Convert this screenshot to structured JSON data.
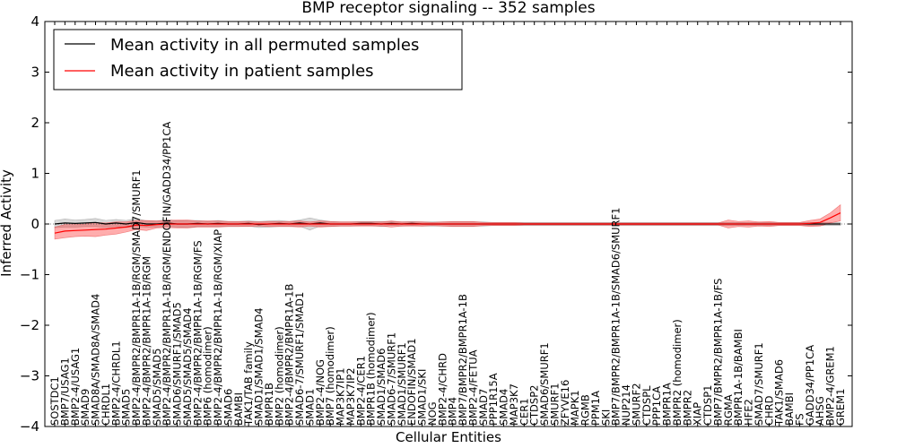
{
  "chart_data": {
    "type": "line",
    "title": "BMP receptor signaling -- 352 samples",
    "xlabel": "Cellular Entities",
    "ylabel": "Inferred Activity",
    "ylim": [
      -4,
      4
    ],
    "yticks": [
      "−4",
      "−3",
      "−2",
      "−1",
      "0",
      "1",
      "2",
      "3",
      "4"
    ],
    "legend": {
      "location": "top-left",
      "entries": [
        {
          "label": "Mean activity in all permuted samples",
          "color": "#000000"
        },
        {
          "label": "Mean activity in patient samples",
          "color": "#ff0000"
        }
      ]
    },
    "categories": [
      "SOSTDC1",
      "BMP7/USAG1",
      "BMP2-4/USAG1",
      "SMAD9",
      "SMAD8A/SMAD8A/SMAD4",
      "CHRDL1",
      "BMP2-4/CHRDL1",
      "SMAD5",
      "BMP2-4/BMPR2/BMPR1A-1B/RGM/SMAD7/SMURF1",
      "BMP2-4/BMPR2/BMPR1A-1B/RGM",
      "SMAD5/SMAD5",
      "BMP2-4/BMPR2/BMPR1A-1B/RGM/ENDOFIN/GADD34/PP1CA",
      "SMAD6/SMURF1/SMAD5",
      "SMAD5/SMAD5/SMAD4",
      "BMP2-4/BMPR2/BMPR1A-1B/RGM/FS",
      "BMP6 (homodimer)",
      "BMP2-4/BMPR2/BMPR1A-1B/RGM/XIAP",
      "SMAD6",
      "BAMBI",
      "TAK1/TAB family",
      "SMAD1/SMAD1/SMAD4",
      "BMPR1B",
      "BMP2 (homodimer)",
      "BMP2-4/BMPR2/BMPR1A-1B",
      "SMAD6-7/SMURF1/SMAD1",
      "SMAD1",
      "BMP2-4/NOG",
      "BMP7 (homodimer)",
      "MAP3K7IP1",
      "MAP3K7IP2",
      "BMP2-4/CER1",
      "BMPR1B (homodimer)",
      "SMAD1/SMAD6",
      "SMAD6-7/SMURF1",
      "SMAD1/SMURF1",
      "ENDOFIN/SMAD1",
      "SMAD1/SKI",
      "NOG",
      "BMP2-4/CHRD",
      "BMP4",
      "BMP7/BMPR2/BMPR1A-1B",
      "BMP2-4/FETUA",
      "SMAD7",
      "PPP1R15A",
      "SMAD4",
      "MAP3K7",
      "CER1",
      "CTDSP2",
      "SMAD6/SMURF1",
      "SMURF1",
      "ZFYVE16",
      "MAPK1",
      "RGMB",
      "PPM1A",
      "SKI",
      "BMP7/BMPR2/BMPR1A-1B/SMAD6/SMURF1",
      "NUP214",
      "SMURF2",
      "CTDSPL",
      "PPP1CA",
      "BMPR1A",
      "BMPR2 (homodimer)",
      "BMPR2",
      "XIAP",
      "CTDSP1",
      "BMP7/BMPR2/BMPR1A-1B/FS",
      "RGMA",
      "BMPR1A-1B/BAMBI",
      "HFE2",
      "SMAD7/SMURF1",
      "CHRD",
      "TAK1/SMAD6",
      "BAMBI",
      "FS",
      "GADD34/PP1CA",
      "AHSG",
      "BMP2-4/GREM1",
      "GREM1"
    ],
    "series": [
      {
        "name": "Mean activity in all permuted samples",
        "color": "#000000",
        "values": [
          0.0,
          0.02,
          0.01,
          0.02,
          0.03,
          0.0,
          0.02,
          0.0,
          0.03,
          0.0,
          0.0,
          0.02,
          0.0,
          0.0,
          0.01,
          0.0,
          0.01,
          0.0,
          0.0,
          0.01,
          -0.01,
          0.0,
          0.01,
          0.0,
          0.02,
          0.0,
          0.02,
          0.0,
          0.0,
          0.0,
          0.01,
          0.01,
          0.0,
          0.01,
          0.0,
          0.01,
          0.0,
          0.0,
          0.0,
          0.0,
          0.0,
          0.0,
          0.0,
          0.0,
          0.0,
          0.0,
          0.0,
          0.0,
          0.0,
          0.0,
          0.0,
          0.0,
          0.0,
          0.0,
          0.0,
          0.0,
          0.0,
          0.0,
          0.0,
          0.0,
          0.0,
          0.0,
          0.0,
          0.0,
          0.0,
          0.0,
          0.0,
          0.0,
          0.0,
          0.0,
          0.0,
          0.0,
          0.0,
          0.0,
          0.0,
          0.0,
          0.0,
          0.0
        ],
        "band": [
          0.07,
          0.08,
          0.07,
          0.07,
          0.08,
          0.07,
          0.07,
          0.07,
          0.08,
          0.06,
          0.06,
          0.07,
          0.06,
          0.07,
          0.06,
          0.05,
          0.06,
          0.05,
          0.05,
          0.05,
          0.06,
          0.06,
          0.06,
          0.05,
          0.06,
          0.12,
          0.06,
          0.05,
          0.04,
          0.04,
          0.04,
          0.04,
          0.05,
          0.04,
          0.04,
          0.04,
          0.04,
          0.04,
          0.04,
          0.04,
          0.04,
          0.04,
          0.04,
          0.03,
          0.03,
          0.03,
          0.03,
          0.03,
          0.03,
          0.03,
          0.03,
          0.03,
          0.03,
          0.03,
          0.03,
          0.03,
          0.03,
          0.03,
          0.03,
          0.03,
          0.03,
          0.03,
          0.03,
          0.03,
          0.03,
          0.03,
          0.03,
          0.03,
          0.03,
          0.03,
          0.03,
          0.03,
          0.03,
          0.03,
          0.03,
          0.03,
          0.03,
          0.03
        ]
      },
      {
        "name": "Mean activity in patient samples",
        "color": "#ff0000",
        "values": [
          -0.18,
          -0.14,
          -0.13,
          -0.12,
          -0.11,
          -0.1,
          -0.08,
          -0.06,
          -0.02,
          -0.03,
          -0.01,
          0.0,
          0.0,
          0.0,
          0.0,
          0.0,
          0.0,
          0.0,
          0.0,
          0.0,
          0.0,
          0.0,
          0.0,
          0.0,
          0.0,
          0.0,
          0.0,
          0.0,
          0.0,
          0.0,
          0.0,
          0.0,
          0.0,
          0.0,
          0.0,
          0.0,
          0.0,
          0.0,
          0.0,
          0.0,
          0.0,
          0.0,
          0.0,
          0.0,
          0.0,
          0.0,
          0.0,
          0.0,
          0.0,
          0.0,
          0.0,
          0.0,
          0.0,
          0.0,
          0.0,
          0.0,
          0.0,
          0.0,
          0.0,
          0.0,
          0.0,
          0.0,
          0.0,
          0.0,
          0.0,
          0.0,
          0.0,
          0.0,
          0.0,
          0.0,
          0.0,
          0.0,
          0.0,
          0.0,
          0.01,
          0.03,
          0.12,
          0.22
        ],
        "band": [
          0.12,
          0.13,
          0.12,
          0.12,
          0.14,
          0.12,
          0.12,
          0.1,
          0.09,
          0.1,
          0.07,
          0.07,
          0.08,
          0.08,
          0.06,
          0.06,
          0.06,
          0.05,
          0.05,
          0.05,
          0.04,
          0.05,
          0.05,
          0.05,
          0.06,
          0.04,
          0.06,
          0.05,
          0.04,
          0.04,
          0.04,
          0.04,
          0.04,
          0.06,
          0.04,
          0.04,
          0.04,
          0.03,
          0.04,
          0.05,
          0.05,
          0.05,
          0.03,
          0.03,
          0.03,
          0.03,
          0.02,
          0.02,
          0.02,
          0.02,
          0.02,
          0.02,
          0.02,
          0.02,
          0.02,
          0.02,
          0.02,
          0.02,
          0.02,
          0.02,
          0.02,
          0.02,
          0.02,
          0.02,
          0.02,
          0.02,
          0.08,
          0.05,
          0.06,
          0.04,
          0.05,
          0.03,
          0.03,
          0.03,
          0.06,
          0.07,
          0.1,
          0.16
        ]
      }
    ]
  }
}
